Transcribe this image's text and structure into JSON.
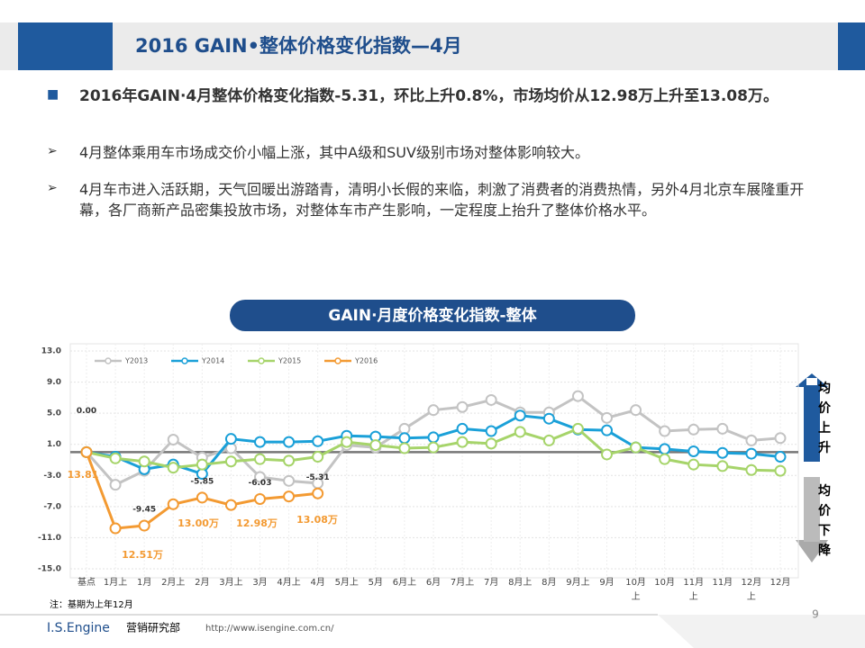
{
  "header": {
    "title": "2016 GAIN•整体价格变化指数—4月"
  },
  "bullets": [
    "2016年GAIN·4月整体价格变化指数-5.31，环比上升0.8%，市场均价从12.98万上升至13.08万。",
    "4月整体乘用车市场成交价小幅上涨，其中A级和SUV级别市场对整体影响较大。",
    "4月车市进入活跃期，天气回暖出游踏青，清明小长假的来临，刺激了消费者的消费热情，另外4月北京车展隆重开幕，各厂商新产品密集投放市场，对整体车市产生影响，一定程度上抬升了整体价格水平。"
  ],
  "chart_data": {
    "type": "line",
    "title": "GAIN·月度价格变化指数-整体",
    "categories": [
      "基点",
      "1月上",
      "1月",
      "2月上",
      "2月",
      "3月上",
      "3月",
      "4月上",
      "4月",
      "5月上",
      "5月",
      "6月上",
      "6月",
      "7月上",
      "7月",
      "8月上",
      "8月",
      "9月上",
      "9月",
      "10月上",
      "10月",
      "11月上",
      "11月",
      "12月上",
      "12月"
    ],
    "series": [
      {
        "name": "Y2013",
        "color": "#c3c3c3",
        "values": [
          0,
          -4.2,
          -2.4,
          1.6,
          -0.7,
          0.5,
          -3.2,
          -3.7,
          -4.0,
          0.9,
          0.6,
          3.0,
          5.4,
          5.8,
          6.7,
          5.1,
          5.1,
          7.2,
          4.4,
          5.4,
          2.7,
          2.9,
          3.0,
          1.5,
          1.8
        ]
      },
      {
        "name": "Y2014",
        "color": "#1aa0d8",
        "values": [
          0,
          -0.6,
          -2.2,
          -1.6,
          -2.8,
          1.7,
          1.3,
          1.3,
          1.4,
          2.1,
          2.0,
          1.8,
          1.9,
          3.0,
          2.7,
          4.7,
          4.3,
          2.9,
          2.8,
          0.6,
          0.4,
          0.1,
          -0.1,
          -0.2,
          -0.6
        ]
      },
      {
        "name": "Y2015",
        "color": "#a6d46a",
        "values": [
          0,
          -0.8,
          -1.2,
          -2.0,
          -1.6,
          -1.2,
          -0.9,
          -1.1,
          -0.6,
          1.3,
          0.9,
          0.5,
          0.6,
          1.3,
          1.1,
          2.6,
          1.5,
          3.0,
          -0.3,
          0.6,
          -0.9,
          -1.6,
          -1.8,
          -2.3,
          -2.4
        ]
      },
      {
        "name": "Y2016",
        "color": "#f39a32",
        "values": [
          0,
          -9.8,
          -9.45,
          -6.7,
          -5.85,
          -6.8,
          -6.03,
          -5.7,
          -5.31,
          null,
          null,
          null,
          null,
          null,
          null,
          null,
          null,
          null,
          null,
          null,
          null,
          null,
          null,
          null,
          null
        ],
        "value_labels": [
          "0.00",
          null,
          "-9.45",
          null,
          "-5.85",
          null,
          "-6.03",
          null,
          "-5.31",
          null,
          null,
          null,
          null,
          null,
          null,
          null,
          null,
          null,
          null,
          null,
          null,
          null,
          null,
          null,
          null
        ]
      }
    ],
    "annotations": [
      "13.81",
      "12.51万",
      "13.00万",
      "12.98万",
      "13.08万"
    ],
    "ylim": [
      -15,
      13
    ],
    "yticks": [
      {
        "value": 13,
        "label": "13.0"
      },
      {
        "value": 9,
        "label": "9.0"
      },
      {
        "value": 5,
        "label": "5.0"
      },
      {
        "value": 1,
        "label": "1.0"
      },
      {
        "value": -3,
        "label": "-3.0"
      },
      {
        "value": -7,
        "label": "-7.0"
      },
      {
        "value": -11,
        "label": "-11.0"
      },
      {
        "value": -15,
        "label": "-15.0"
      }
    ],
    "grid": true
  },
  "side": {
    "up": "均价上升",
    "down": "均价下降"
  },
  "note": "注：基期为上年12月",
  "footer": {
    "brand": "I.S.Engine",
    "dept": "营销研究部",
    "url": "http://www.isengine.com.cn/",
    "page": "9"
  }
}
